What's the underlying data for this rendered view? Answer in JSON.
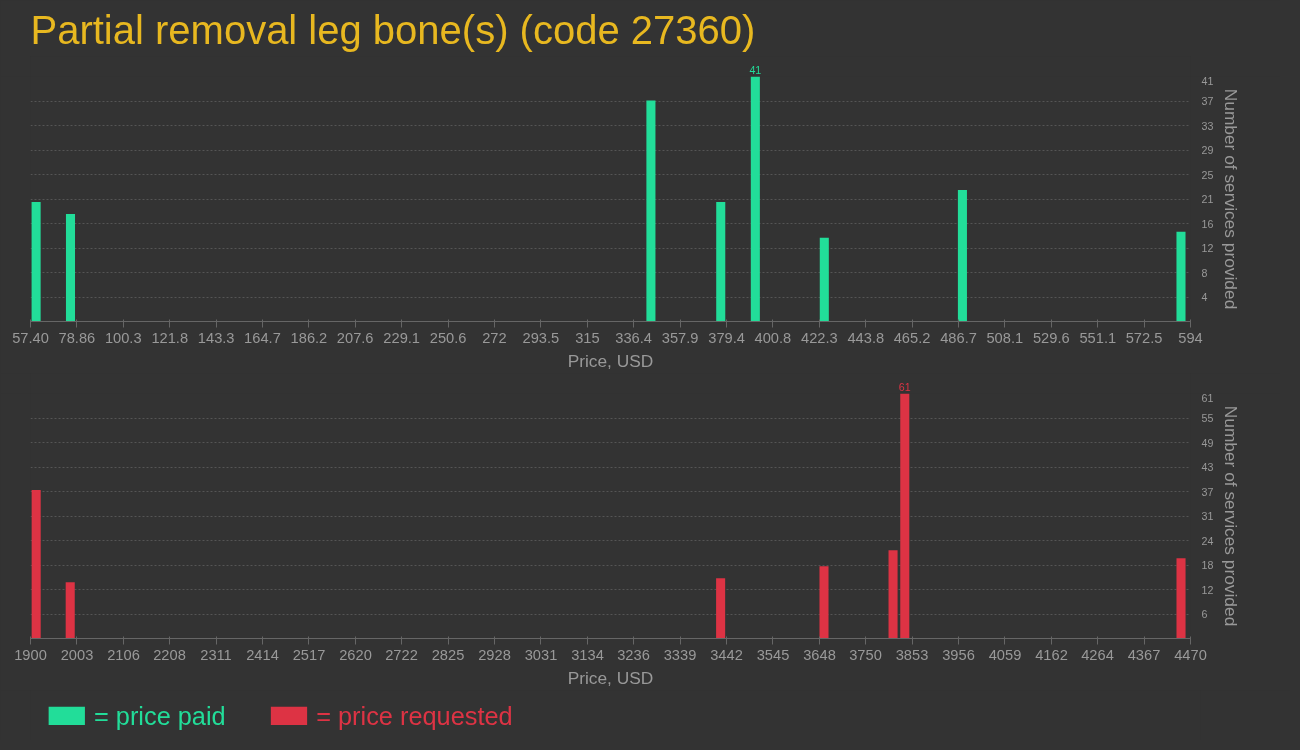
{
  "chart_data": [
    {
      "type": "bar",
      "title": "Partial removal leg bone(s) (code 27360)",
      "xlabel": "Price, USD",
      "ylabel": "Number of services provided",
      "x": [
        60,
        75.9,
        344.4,
        376.7,
        392.7,
        424.6,
        488.5,
        589.6
      ],
      "series": [
        {
          "name": "= price paid",
          "color": "#22dd99",
          "values": [
            20,
            18,
            37,
            20,
            41,
            14,
            22,
            15
          ],
          "value_labels": [
            null,
            null,
            null,
            null,
            "41",
            null,
            null,
            null
          ]
        }
      ],
      "xlim": [
        57.4,
        594
      ],
      "xticks": [
        {
          "value": 57.4,
          "label": "57.40"
        },
        78.86,
        100.3,
        121.8,
        143.3,
        164.7,
        186.2,
        207.6,
        229.1,
        250.6,
        272,
        293.5,
        315,
        336.4,
        357.9,
        379.4,
        400.8,
        422.3,
        443.8,
        465.2,
        486.7,
        508.1,
        529.6,
        551.1,
        572.5,
        594
      ],
      "ylim": [
        0,
        41
      ],
      "yticks": [
        {
          "value": 4.1,
          "label": "4"
        },
        {
          "value": 8.2,
          "label": "8"
        },
        {
          "value": 12.3,
          "label": "12"
        },
        {
          "value": 16.4,
          "label": "16"
        },
        {
          "value": 20.5,
          "label": "21"
        },
        {
          "value": 24.6,
          "label": "25"
        },
        {
          "value": 28.7,
          "label": "29"
        },
        {
          "value": 32.8,
          "label": "33"
        },
        {
          "value": 36.9,
          "label": "37"
        },
        41
      ],
      "grid": "y",
      "legend": "bottom left"
    },
    {
      "type": "bar",
      "xlabel": "Price, USD",
      "ylabel": "Number of services provided",
      "x": [
        1912.6,
        1988,
        3429,
        3658,
        3811,
        3837,
        4449
      ],
      "series": [
        {
          "name": "= price requested",
          "color": "#dd3344",
          "values": [
            37,
            14,
            15,
            18,
            22,
            61,
            20
          ],
          "value_labels": [
            null,
            null,
            null,
            null,
            null,
            "61",
            null
          ]
        }
      ],
      "xlim": [
        1900,
        4470
      ],
      "xticks": [
        1900,
        2003,
        2106,
        2208,
        2311,
        2414,
        2517,
        2620,
        2722,
        2825,
        2928,
        3031,
        3134,
        3236,
        3339,
        3442,
        3545,
        3648,
        3750,
        3853,
        3956,
        4059,
        4162,
        4264,
        4367,
        4470
      ],
      "ylim": [
        0,
        61
      ],
      "yticks": [
        {
          "value": 6.1,
          "label": "6"
        },
        {
          "value": 12.2,
          "label": "12"
        },
        {
          "value": 18.3,
          "label": "18"
        },
        {
          "value": 24.4,
          "label": "24"
        },
        {
          "value": 30.5,
          "label": "31"
        },
        {
          "value": 36.6,
          "label": "37"
        },
        {
          "value": 42.7,
          "label": "43"
        },
        {
          "value": 48.8,
          "label": "49"
        },
        {
          "value": 54.9,
          "label": "55"
        },
        61
      ],
      "grid": "y",
      "legend": "bottom left"
    }
  ]
}
